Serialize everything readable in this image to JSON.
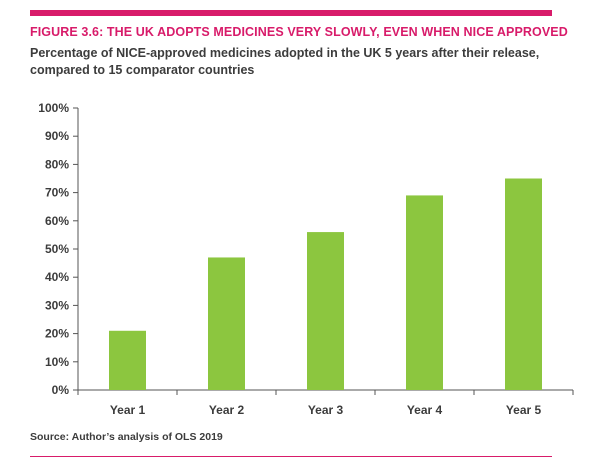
{
  "figure": {
    "title": "FIGURE 3.6: THE UK ADOPTS MEDICINES VERY SLOWLY, EVEN WHEN NICE APPROVED",
    "subtitle": "Percentage of NICE-approved medicines adopted in the UK 5 years after their release, compared to 15 comparator countries",
    "source": "Source: Author’s analysis of OLS 2019"
  },
  "colors": {
    "accent": "#d81b6a",
    "bar": "#8cc63f",
    "text": "#3c3c3c",
    "axis": "#555555"
  },
  "chart_data": {
    "type": "bar",
    "categories": [
      "Year 1",
      "Year 2",
      "Year 3",
      "Year 4",
      "Year 5"
    ],
    "values": [
      21,
      47,
      56,
      69,
      75
    ],
    "xlabel": "",
    "ylabel": "",
    "ylim": [
      0,
      100
    ],
    "yticks": [
      "0%",
      "10%",
      "20%",
      "30%",
      "40%",
      "50%",
      "60%",
      "70%",
      "80%",
      "90%",
      "100%"
    ],
    "grid": false,
    "legend": "none"
  }
}
